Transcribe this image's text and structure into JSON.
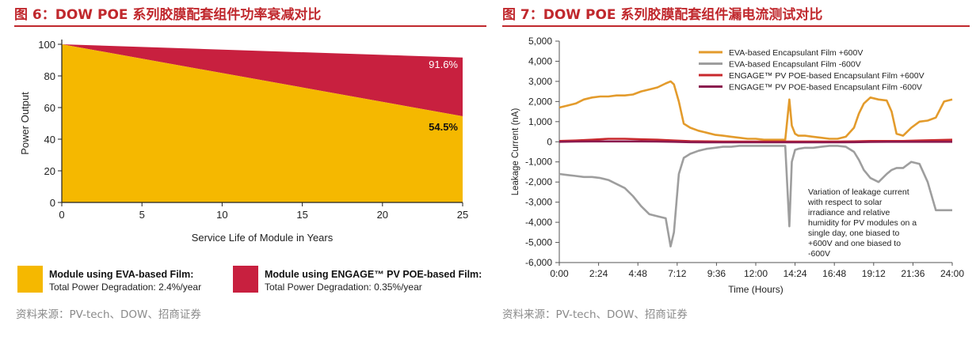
{
  "left": {
    "title": "图 6：DOW POE 系列胶膜配套组件功率衰减对比",
    "source": "资料来源：PV-tech、DOW、招商证券"
  },
  "right": {
    "title": "图 7：DOW POE 系列胶膜配套组件漏电流测试对比",
    "source": "资料来源：PV-tech、DOW、招商证券"
  },
  "chart_data": [
    {
      "type": "area",
      "ylabel": "Power Output",
      "xlabel": "Service Life of Module in Years",
      "xlim": [
        0,
        25
      ],
      "ylim": [
        0,
        100
      ],
      "xticks": [
        "0",
        "5",
        "10",
        "15",
        "20",
        "25"
      ],
      "yticks": [
        "0",
        "20",
        "40",
        "60",
        "80",
        "100"
      ],
      "series": [
        {
          "name": "Module using ENGAGE™ PV POE-based Film:",
          "subtitle": "Total Power Degradation: 0.35%/year",
          "color": "#c8203f",
          "x": [
            0,
            25
          ],
          "y": [
            100,
            91.6
          ],
          "end_label": "91.6%"
        },
        {
          "name": "Module using EVA-based Film:",
          "subtitle": "Total Power Degradation: 2.4%/year",
          "color": "#f5b800",
          "x": [
            0,
            25
          ],
          "y": [
            100,
            54.5
          ],
          "end_label": "54.5%"
        }
      ],
      "legend": "bottom"
    },
    {
      "type": "line",
      "ylabel": "Leakage Current (nA)",
      "xlabel": "Time (Hours)",
      "xlim": [
        0,
        24
      ],
      "ylim": [
        -6000,
        5000
      ],
      "xticks": [
        "0:00",
        "2:24",
        "4:48",
        "7:12",
        "9:36",
        "12:00",
        "14:24",
        "16:48",
        "19:12",
        "21:36",
        "24:00"
      ],
      "yticks": [
        "5,000",
        "4,000",
        "3,000",
        "2,000",
        "1,000",
        "0",
        "-1,000",
        "-2,000",
        "-3,000",
        "-4,000",
        "-5,000",
        "-6,000"
      ],
      "annotation": "Variation of leakage current with respect to solar irradiance and relative humidity for PV modules on a single day, one biased to +600V and one biased to -600V",
      "legend": "top-right",
      "series": [
        {
          "name": "EVA-based Encapsulant Film +600V",
          "color": "#e39b2c",
          "x": [
            0,
            0.5,
            1,
            1.5,
            2,
            2.5,
            3,
            3.5,
            4,
            4.5,
            5,
            5.5,
            6,
            6.5,
            6.8,
            7,
            7.3,
            7.6,
            8,
            8.5,
            9,
            9.5,
            10,
            10.5,
            11,
            11.5,
            12,
            12.5,
            13,
            13.5,
            13.8,
            14.05,
            14.2,
            14.4,
            14.6,
            15,
            15.5,
            16,
            16.5,
            17,
            17.5,
            18,
            18.3,
            18.6,
            19,
            19.5,
            20,
            20.3,
            20.6,
            21,
            21.5,
            22,
            22.5,
            23,
            23.5,
            24
          ],
          "y": [
            1700,
            1800,
            1900,
            2100,
            2200,
            2250,
            2250,
            2300,
            2300,
            2350,
            2500,
            2600,
            2700,
            2900,
            3000,
            2850,
            2000,
            900,
            700,
            550,
            450,
            350,
            300,
            250,
            200,
            150,
            150,
            100,
            100,
            100,
            100,
            2100,
            800,
            400,
            300,
            300,
            250,
            200,
            150,
            150,
            250,
            700,
            1400,
            1900,
            2200,
            2100,
            2050,
            1500,
            400,
            300,
            700,
            1000,
            1050,
            1200,
            2000,
            2100
          ]
        },
        {
          "name": "EVA-based Encapsulant Film -600V",
          "color": "#9e9e9e",
          "x": [
            0,
            0.5,
            1,
            1.5,
            2,
            2.5,
            3,
            3.5,
            4,
            4.5,
            5,
            5.5,
            6,
            6.5,
            6.8,
            7,
            7.3,
            7.6,
            8,
            8.5,
            9,
            9.5,
            10,
            10.5,
            11,
            11.5,
            12,
            12.5,
            13,
            13.5,
            13.8,
            14.05,
            14.2,
            14.4,
            14.6,
            15,
            15.5,
            16,
            16.5,
            17,
            17.5,
            18,
            18.3,
            18.6,
            19,
            19.5,
            20,
            20.3,
            20.6,
            21,
            21.5,
            22,
            22.5,
            23,
            23.5,
            24
          ],
          "y": [
            -1600,
            -1650,
            -1700,
            -1750,
            -1750,
            -1800,
            -1900,
            -2100,
            -2300,
            -2700,
            -3200,
            -3600,
            -3700,
            -3800,
            -5200,
            -4500,
            -1600,
            -800,
            -600,
            -450,
            -350,
            -300,
            -250,
            -250,
            -200,
            -200,
            -200,
            -200,
            -200,
            -200,
            -200,
            -4200,
            -1000,
            -400,
            -350,
            -300,
            -300,
            -250,
            -200,
            -200,
            -250,
            -500,
            -900,
            -1400,
            -1800,
            -2000,
            -1600,
            -1400,
            -1300,
            -1300,
            -1000,
            -1100,
            -2000,
            -3400,
            -3400,
            -3400
          ]
        },
        {
          "name": "ENGAGE™ PV POE-based Encapsulant Film +600V",
          "color": "#c8282d",
          "x": [
            0,
            1,
            2,
            3,
            4,
            5,
            6,
            7,
            8,
            9,
            10,
            11,
            12,
            13,
            14,
            15,
            16,
            17,
            18,
            19,
            20,
            21,
            22,
            23,
            24
          ],
          "y": [
            40,
            60,
            100,
            150,
            150,
            120,
            100,
            60,
            30,
            20,
            10,
            10,
            10,
            10,
            10,
            10,
            10,
            10,
            20,
            40,
            40,
            40,
            60,
            80,
            100
          ]
        },
        {
          "name": "ENGAGE™ PV POE-based Encapsulant Film -600V",
          "color": "#8b1a4f",
          "x": [
            0,
            1,
            2,
            3,
            4,
            5,
            6,
            7,
            8,
            9,
            10,
            11,
            12,
            13,
            14,
            15,
            16,
            17,
            18,
            19,
            20,
            21,
            22,
            23,
            24
          ],
          "y": [
            0,
            10,
            20,
            20,
            20,
            20,
            10,
            0,
            -20,
            -30,
            -30,
            -30,
            -30,
            -30,
            -30,
            -30,
            -30,
            -30,
            -20,
            -10,
            0,
            0,
            0,
            0,
            0
          ]
        }
      ]
    }
  ]
}
